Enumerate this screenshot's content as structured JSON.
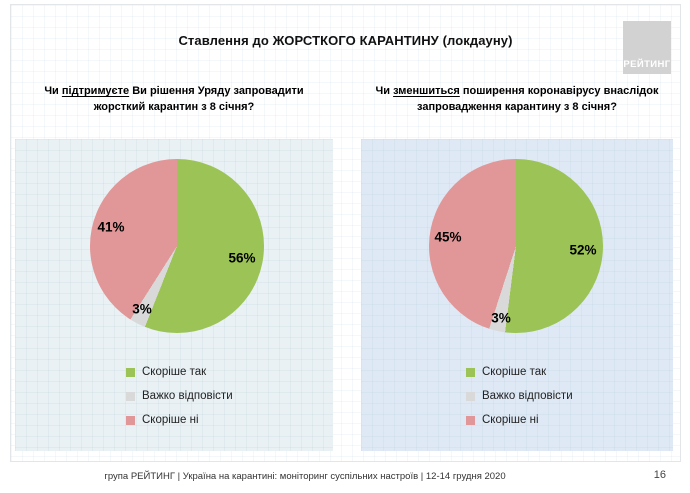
{
  "slide": {
    "title": "Ставлення до ЖОРСТКОГО КАРАНТИНУ (локдауну)",
    "logo_text": "РЕЙТИНГ",
    "footer_text": "група РЕЙТИНГ | Україна на карантині: моніторинг суспільних настроїв | 12-14 грудня 2020",
    "page_number": "16"
  },
  "questions": [
    {
      "prefix": "Чи ",
      "underlined": "підтримуєте",
      "rest": " Ви рішення Уряду запровадити",
      "line2": "жорсткий карантин з 8 січня?"
    },
    {
      "prefix": "Чи ",
      "underlined": "зменшиться",
      "rest": " поширення коронавірусу внаслідок",
      "line2": "запровадження карантину з 8 січня?"
    }
  ],
  "legend": [
    {
      "label": "Скоріше так",
      "color": "#9bc355"
    },
    {
      "label": "Важко відповісти",
      "color": "#d9d9d9"
    },
    {
      "label": "Скоріше ні",
      "color": "#e19697"
    }
  ],
  "pies": [
    {
      "labels": {
        "yes": "56%",
        "hard": "3%",
        "no": "41%"
      }
    },
    {
      "labels": {
        "yes": "52%",
        "hard": "3%",
        "no": "45%"
      }
    }
  ],
  "chart_data": [
    {
      "type": "pie",
      "title": "Чи підтримуєте Ви рішення Уряду запровадити жорсткий карантин з 8 січня?",
      "labels": [
        "Скоріше так",
        "Важко відповісти",
        "Скоріше ні"
      ],
      "values": [
        56,
        3,
        41
      ],
      "data_labels": [
        "56%",
        "3%",
        "41%"
      ],
      "colors": [
        "#9bc355",
        "#d9d9d9",
        "#e19697"
      ],
      "start_angle_deg": 0,
      "direction": "clockwise",
      "legend_position": "bottom"
    },
    {
      "type": "pie",
      "title": "Чи зменшиться поширення коронавірусу внаслідок запровадження карантину з 8 січня?",
      "labels": [
        "Скоріше так",
        "Важко відповісти",
        "Скоріше ні"
      ],
      "values": [
        52,
        3,
        45
      ],
      "data_labels": [
        "52%",
        "3%",
        "45%"
      ],
      "colors": [
        "#9bc355",
        "#d9d9d9",
        "#e19697"
      ],
      "start_angle_deg": 0,
      "direction": "clockwise",
      "legend_position": "bottom"
    }
  ]
}
